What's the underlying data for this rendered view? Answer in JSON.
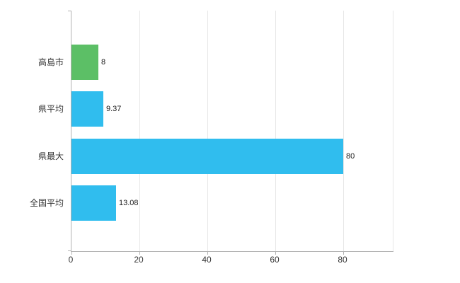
{
  "chart_data": {
    "type": "bar",
    "orientation": "horizontal",
    "title": "",
    "xlabel": "",
    "ylabel": "",
    "categories": [
      "高島市",
      "県平均",
      "県最大",
      "全国平均"
    ],
    "values": [
      8,
      9.37,
      80,
      13.08
    ],
    "value_labels": [
      "8",
      "9.37",
      "80",
      "13.08"
    ],
    "bar_colors": [
      "#5cbf66",
      "#30bdee",
      "#30bdee",
      "#30bdee"
    ],
    "x_ticks": [
      0,
      20,
      40,
      60,
      80
    ],
    "x_tick_labels": [
      "0",
      "20",
      "40",
      "60",
      "80"
    ],
    "xlim": [
      0,
      94.8
    ],
    "grid": "vertical",
    "legend": "none",
    "colors": {
      "axis": "#b3b3b3",
      "gridline": "#e7e7e7",
      "label_text": "#333333",
      "value_text": "#1a1a1a",
      "background": "#ffffff"
    }
  }
}
